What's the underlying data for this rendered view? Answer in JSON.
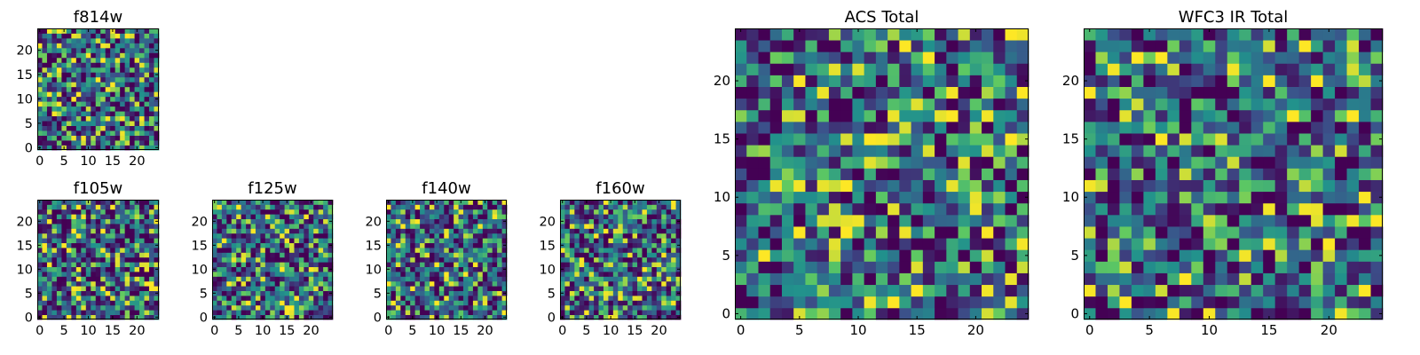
{
  "figure": {
    "description": "Grid of noisy image cutouts (25x25 pixels) for HST filters with viridis colormap"
  },
  "colors": {
    "viridis": [
      "#440154",
      "#3b528b",
      "#21918c",
      "#5ec962",
      "#fde725"
    ],
    "axes": "#000000",
    "background": "#ffffff"
  },
  "chart_data": [
    {
      "id": "f814w",
      "type": "heatmap",
      "title": "f814w",
      "grid_size": 25,
      "seed": 11,
      "colormap": "viridis",
      "xlim": [
        0,
        25
      ],
      "ylim": [
        0,
        25
      ],
      "xticks": [
        0,
        5,
        10,
        15,
        20
      ],
      "yticks": [
        0,
        5,
        10,
        15,
        20
      ],
      "xtick_labels": [
        "0",
        "5",
        "10",
        "15",
        "20"
      ],
      "ytick_labels": [
        "0",
        "5",
        "10",
        "15",
        "20"
      ]
    },
    {
      "id": "f105w",
      "type": "heatmap",
      "title": "f105w",
      "grid_size": 25,
      "seed": 23,
      "colormap": "viridis",
      "xlim": [
        0,
        25
      ],
      "ylim": [
        0,
        25
      ],
      "xticks": [
        0,
        5,
        10,
        15,
        20
      ],
      "yticks": [
        0,
        5,
        10,
        15,
        20
      ],
      "xtick_labels": [
        "0",
        "5",
        "10",
        "15",
        "20"
      ],
      "ytick_labels": [
        "0",
        "5",
        "10",
        "15",
        "20"
      ]
    },
    {
      "id": "f125w",
      "type": "heatmap",
      "title": "f125w",
      "grid_size": 25,
      "seed": 37,
      "colormap": "viridis",
      "xlim": [
        0,
        25
      ],
      "ylim": [
        0,
        25
      ],
      "xticks": [
        0,
        5,
        10,
        15,
        20
      ],
      "yticks": [
        0,
        5,
        10,
        15,
        20
      ],
      "xtick_labels": [
        "0",
        "5",
        "10",
        "15",
        "20"
      ],
      "ytick_labels": [
        "0",
        "5",
        "10",
        "15",
        "20"
      ]
    },
    {
      "id": "f140w",
      "type": "heatmap",
      "title": "f140w",
      "grid_size": 25,
      "seed": 41,
      "colormap": "viridis",
      "xlim": [
        0,
        25
      ],
      "ylim": [
        0,
        25
      ],
      "xticks": [
        0,
        5,
        10,
        15,
        20
      ],
      "yticks": [
        0,
        5,
        10,
        15,
        20
      ],
      "xtick_labels": [
        "0",
        "5",
        "10",
        "15",
        "20"
      ],
      "ytick_labels": [
        "0",
        "5",
        "10",
        "15",
        "20"
      ]
    },
    {
      "id": "f160w",
      "type": "heatmap",
      "title": "f160w",
      "grid_size": 25,
      "seed": 53,
      "colormap": "viridis",
      "xlim": [
        0,
        25
      ],
      "ylim": [
        0,
        25
      ],
      "xticks": [
        0,
        5,
        10,
        15,
        20
      ],
      "yticks": [
        0,
        5,
        10,
        15,
        20
      ],
      "xtick_labels": [
        "0",
        "5",
        "10",
        "15",
        "20"
      ],
      "ytick_labels": [
        "0",
        "5",
        "10",
        "15",
        "20"
      ]
    },
    {
      "id": "acs-total",
      "type": "heatmap",
      "title": "ACS Total",
      "grid_size": 25,
      "seed": 67,
      "colormap": "viridis",
      "xlim": [
        0,
        25
      ],
      "ylim": [
        0,
        25
      ],
      "xticks": [
        0,
        5,
        10,
        15,
        20
      ],
      "yticks": [
        0,
        5,
        10,
        15,
        20
      ],
      "xtick_labels": [
        "0",
        "5",
        "10",
        "15",
        "20"
      ],
      "ytick_labels": [
        "0",
        "5",
        "10",
        "15",
        "20"
      ]
    },
    {
      "id": "wfc3-ir-total",
      "type": "heatmap",
      "title": "WFC3 IR Total",
      "grid_size": 25,
      "seed": 79,
      "colormap": "viridis",
      "xlim": [
        0,
        25
      ],
      "ylim": [
        0,
        25
      ],
      "xticks": [
        0,
        5,
        10,
        15,
        20
      ],
      "yticks": [
        0,
        5,
        10,
        15,
        20
      ],
      "xtick_labels": [
        "0",
        "5",
        "10",
        "15",
        "20"
      ],
      "ytick_labels": [
        "0",
        "5",
        "10",
        "15",
        "20"
      ]
    }
  ]
}
